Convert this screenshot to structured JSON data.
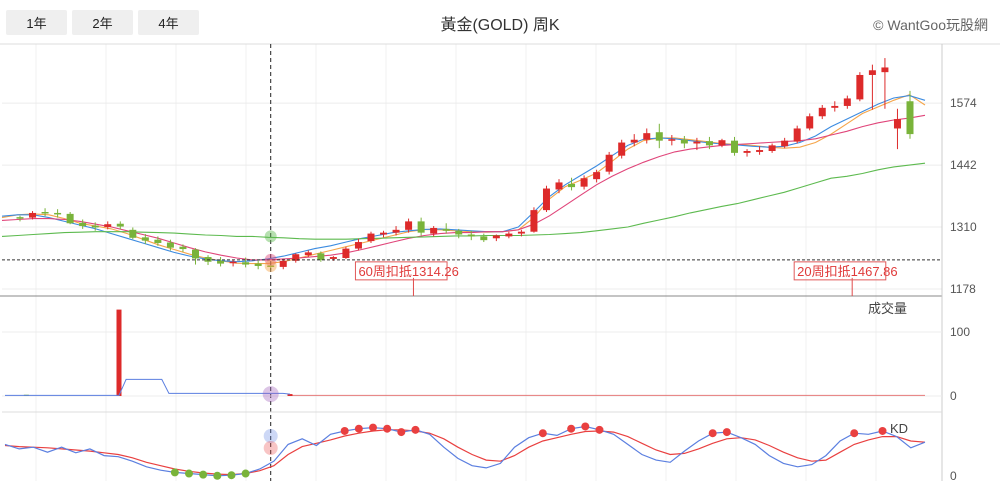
{
  "range_buttons": [
    "1年",
    "2年",
    "4年"
  ],
  "title": "黃金(GOLD) 周K",
  "credit": "© WantGoo玩股網",
  "colors": {
    "up": "#dd2a2a",
    "down": "#79b33a",
    "ma_short": "#f5a54a",
    "ma_mid": "#3c8be0",
    "ma_long": "#e0457a",
    "ma_60": "#5dba4f",
    "volume_line": "#5b7fe0",
    "k_line": "#5b7fe0",
    "d_line": "#e94040"
  },
  "chart_data": {
    "type": "candlestick",
    "price_axis": {
      "ticks": [
        1574,
        1442,
        1310,
        1178
      ],
      "range": [
        1163,
        1700
      ]
    },
    "candles": [
      [
        1331,
        1334,
        1328,
        1322
      ],
      [
        1330,
        1344,
        1340,
        1326
      ],
      [
        1342,
        1350,
        1339,
        1333
      ],
      [
        1340,
        1348,
        1337,
        1330
      ],
      [
        1338,
        1342,
        1318,
        1316
      ],
      [
        1319,
        1326,
        1312,
        1306
      ],
      [
        1313,
        1320,
        1309,
        1302
      ],
      [
        1310,
        1322,
        1316,
        1305
      ],
      [
        1317,
        1322,
        1311,
        1305
      ],
      [
        1304,
        1309,
        1287,
        1284
      ],
      [
        1288,
        1295,
        1281,
        1274
      ],
      [
        1283,
        1290,
        1276,
        1270
      ],
      [
        1277,
        1283,
        1266,
        1260
      ],
      [
        1268,
        1273,
        1263,
        1257
      ],
      [
        1262,
        1265,
        1243,
        1230
      ],
      [
        1246,
        1250,
        1236,
        1229
      ],
      [
        1238,
        1246,
        1232,
        1226
      ],
      [
        1233,
        1240,
        1236,
        1226
      ],
      [
        1235,
        1245,
        1230,
        1224
      ],
      [
        1232,
        1238,
        1227,
        1220
      ],
      [
        1228,
        1236,
        1225,
        1218
      ],
      [
        1225,
        1242,
        1238,
        1220
      ],
      [
        1238,
        1254,
        1252,
        1234
      ],
      [
        1250,
        1260,
        1256,
        1246
      ],
      [
        1254,
        1258,
        1240,
        1236
      ],
      [
        1242,
        1248,
        1246,
        1238
      ],
      [
        1244,
        1268,
        1264,
        1242
      ],
      [
        1264,
        1285,
        1278,
        1260
      ],
      [
        1280,
        1300,
        1296,
        1276
      ],
      [
        1294,
        1302,
        1298,
        1288
      ],
      [
        1298,
        1312,
        1304,
        1292
      ],
      [
        1304,
        1328,
        1322,
        1298
      ],
      [
        1322,
        1330,
        1298,
        1292
      ],
      [
        1296,
        1312,
        1308,
        1290
      ],
      [
        1306,
        1318,
        1302,
        1296
      ],
      [
        1302,
        1306,
        1294,
        1286
      ],
      [
        1294,
        1302,
        1290,
        1282
      ],
      [
        1290,
        1296,
        1282,
        1278
      ],
      [
        1286,
        1294,
        1292,
        1280
      ],
      [
        1290,
        1300,
        1296,
        1286
      ],
      [
        1296,
        1304,
        1300,
        1290
      ],
      [
        1300,
        1352,
        1346,
        1298
      ],
      [
        1346,
        1398,
        1392,
        1342
      ],
      [
        1390,
        1412,
        1405,
        1382
      ],
      [
        1402,
        1415,
        1395,
        1388
      ],
      [
        1396,
        1420,
        1414,
        1390
      ],
      [
        1412,
        1432,
        1427,
        1405
      ],
      [
        1428,
        1470,
        1464,
        1422
      ],
      [
        1462,
        1496,
        1490,
        1456
      ],
      [
        1490,
        1508,
        1496,
        1482
      ],
      [
        1496,
        1520,
        1510,
        1488
      ],
      [
        1512,
        1530,
        1494,
        1478
      ],
      [
        1494,
        1506,
        1497,
        1484
      ],
      [
        1496,
        1504,
        1488,
        1478
      ],
      [
        1488,
        1500,
        1492,
        1474
      ],
      [
        1493,
        1502,
        1484,
        1476
      ],
      [
        1484,
        1498,
        1495,
        1480
      ],
      [
        1494,
        1502,
        1468,
        1462
      ],
      [
        1468,
        1476,
        1472,
        1460
      ],
      [
        1470,
        1482,
        1474,
        1464
      ],
      [
        1472,
        1488,
        1484,
        1468
      ],
      [
        1482,
        1500,
        1494,
        1478
      ],
      [
        1492,
        1526,
        1520,
        1488
      ],
      [
        1520,
        1552,
        1546,
        1516
      ],
      [
        1546,
        1570,
        1564,
        1540
      ],
      [
        1564,
        1578,
        1568,
        1556
      ],
      [
        1568,
        1590,
        1584,
        1562
      ],
      [
        1582,
        1640,
        1634,
        1578
      ],
      [
        1634,
        1656,
        1644,
        1560
      ],
      [
        1640,
        1670,
        1650,
        1562
      ],
      [
        1520,
        1562,
        1540,
        1476
      ],
      [
        1578,
        1600,
        1508,
        1498
      ]
    ],
    "moving_averages": [
      {
        "key": "ma_short",
        "values": [
          1330,
          1336,
          1338,
          1336,
          1328,
          1318,
          1312,
          1306,
          1296,
          1284,
          1272,
          1262,
          1252,
          1244,
          1238,
          1233,
          1232,
          1232,
          1236,
          1244,
          1252,
          1260,
          1268,
          1276,
          1284,
          1292,
          1300,
          1305,
          1304,
          1302,
          1300,
          1299,
          1300,
          1304,
          1330,
          1370,
          1396,
          1410,
          1425,
          1450,
          1476,
          1494,
          1500,
          1500,
          1496,
          1492,
          1488,
          1486,
          1484,
          1480,
          1478,
          1480,
          1490,
          1508,
          1530,
          1552,
          1566,
          1580,
          1592,
          1570
        ]
      },
      {
        "key": "ma_mid",
        "values": [
          1333,
          1336,
          1336,
          1330,
          1322,
          1314,
          1306,
          1296,
          1286,
          1276,
          1266,
          1256,
          1248,
          1242,
          1238,
          1236,
          1238,
          1242,
          1248,
          1256,
          1264,
          1270,
          1278,
          1286,
          1292,
          1298,
          1302,
          1305,
          1306,
          1304,
          1302,
          1300,
          1300,
          1310,
          1342,
          1375,
          1400,
          1420,
          1440,
          1462,
          1484,
          1497,
          1500,
          1498,
          1494,
          1490,
          1487,
          1485,
          1482,
          1480,
          1482,
          1490,
          1504,
          1524,
          1540,
          1556,
          1572,
          1585,
          1590,
          1580
        ]
      },
      {
        "key": "ma_long",
        "values": [
          1324,
          1326,
          1328,
          1328,
          1326,
          1322,
          1316,
          1310,
          1302,
          1294,
          1286,
          1276,
          1266,
          1257,
          1250,
          1244,
          1240,
          1240,
          1242,
          1244,
          1247,
          1250,
          1255,
          1262,
          1270,
          1278,
          1286,
          1292,
          1296,
          1298,
          1298,
          1300,
          1300,
          1304,
          1316,
          1334,
          1356,
          1378,
          1400,
          1418,
          1434,
          1448,
          1460,
          1470,
          1476,
          1480,
          1484,
          1486,
          1488,
          1490,
          1492,
          1494,
          1498,
          1506,
          1514,
          1524,
          1532,
          1538,
          1542,
          1548
        ]
      },
      {
        "key": "ma_60",
        "values": [
          1290,
          1292,
          1294,
          1296,
          1298,
          1299,
          1300,
          1300,
          1300,
          1299,
          1298,
          1297,
          1295,
          1293,
          1292,
          1290,
          1290,
          1288,
          1287,
          1285,
          1284,
          1284,
          1284,
          1285,
          1286,
          1287,
          1288,
          1289,
          1290,
          1291,
          1291,
          1292,
          1292,
          1292,
          1293,
          1294,
          1296,
          1298,
          1302,
          1306,
          1310,
          1318,
          1325,
          1332,
          1340,
          1347,
          1354,
          1360,
          1368,
          1376,
          1384,
          1394,
          1404,
          1414,
          1418,
          1424,
          1432,
          1438,
          1442,
          1446
        ]
      }
    ],
    "annotations": [
      {
        "label": "60周扣抵1314.26",
        "index": 27
      },
      {
        "label": "20周扣抵1467.86",
        "index": 62
      }
    ],
    "crosshair_index": 20,
    "reference_price": 1240,
    "volume": {
      "label": "成交量",
      "ticks": [
        100,
        0
      ],
      "range": [
        0,
        150
      ],
      "bar_values": [
        0,
        0,
        0,
        2,
        0,
        0,
        0,
        0,
        0,
        0,
        0,
        0,
        0,
        0,
        0,
        0,
        135,
        0,
        0,
        0,
        0,
        0,
        0,
        0,
        0,
        0,
        0,
        0,
        0,
        0,
        0,
        0,
        0,
        0,
        0,
        0,
        0,
        0,
        0,
        0,
        3
      ],
      "line_values": [
        1,
        1,
        1,
        1,
        1,
        1,
        1,
        1,
        1,
        1,
        1,
        1,
        1,
        1,
        1,
        1,
        1,
        26,
        26,
        26,
        26,
        26,
        26,
        4,
        4,
        4,
        4,
        4,
        4,
        4,
        4,
        4,
        4,
        4,
        4,
        4,
        4,
        4,
        4,
        4,
        3
      ]
    },
    "kd": {
      "label": "KD",
      "ticks": [
        0
      ],
      "range": [
        0,
        100
      ],
      "k": [
        60,
        52,
        55,
        46,
        55,
        45,
        52,
        40,
        38,
        30,
        20,
        14,
        10,
        8,
        6,
        4,
        5,
        8,
        16,
        30,
        60,
        70,
        58,
        78,
        84,
        88,
        90,
        88,
        82,
        86,
        78,
        55,
        35,
        22,
        18,
        26,
        55,
        72,
        80,
        76,
        88,
        92,
        86,
        78,
        60,
        42,
        32,
        28,
        48,
        66,
        80,
        82,
        72,
        60,
        40,
        26,
        20,
        24,
        40,
        66,
        80,
        78,
        84,
        74,
        54,
        64
      ],
      "d": [
        58,
        56,
        55,
        54,
        52,
        50,
        48,
        45,
        42,
        36,
        28,
        22,
        16,
        12,
        9,
        7,
        6,
        8,
        13,
        22,
        42,
        56,
        62,
        68,
        75,
        80,
        84,
        86,
        86,
        84,
        80,
        70,
        55,
        42,
        32,
        30,
        40,
        55,
        66,
        72,
        78,
        83,
        84,
        82,
        74,
        62,
        50,
        42,
        44,
        52,
        62,
        70,
        72,
        68,
        58,
        46,
        36,
        30,
        32,
        46,
        60,
        68,
        74,
        74,
        66,
        64
      ]
    }
  }
}
